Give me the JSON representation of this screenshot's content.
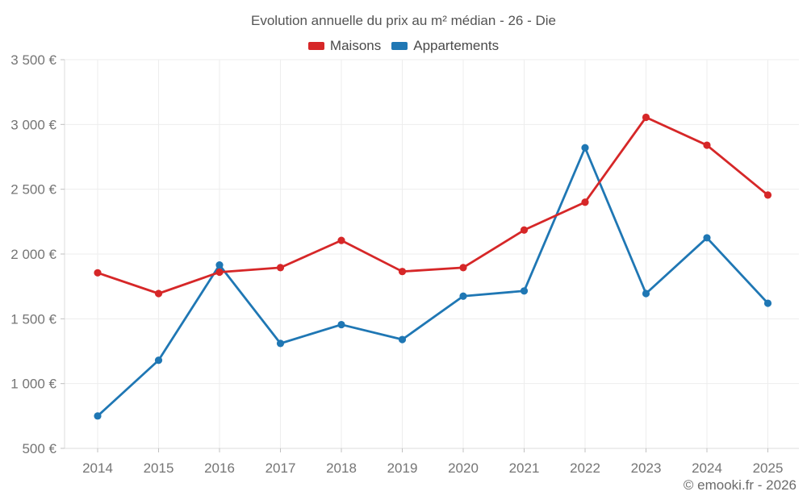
{
  "header": {
    "title": "Evolution annuelle du prix au m² médian - 26 - Die"
  },
  "legend": {
    "items": [
      {
        "label": "Maisons",
        "color": "#d62728"
      },
      {
        "label": "Appartements",
        "color": "#1f77b4"
      }
    ]
  },
  "footer": {
    "attribution": "© emooki.fr - 2026"
  },
  "chart_data": {
    "type": "line",
    "title": "Evolution annuelle du prix au m² médian - 26 - Die",
    "categories": [
      "2014",
      "2015",
      "2016",
      "2017",
      "2018",
      "2019",
      "2020",
      "2021",
      "2022",
      "2023",
      "2024",
      "2025"
    ],
    "series": [
      {
        "name": "Maisons",
        "color": "#d62728",
        "values": [
          1855,
          1695,
          1860,
          1895,
          2105,
          1865,
          1895,
          2185,
          2400,
          3055,
          2840,
          2455
        ]
      },
      {
        "name": "Appartements",
        "color": "#1f77b4",
        "values": [
          750,
          1180,
          1915,
          1310,
          1455,
          1340,
          1675,
          1715,
          2820,
          1695,
          2125,
          1620
        ]
      }
    ],
    "xlabel": "",
    "ylabel": "",
    "ylim": [
      500,
      3500
    ],
    "ytick_step": 500,
    "ytick_labels": [
      "500 €",
      "1 000 €",
      "1 500 €",
      "2 000 €",
      "2 500 €",
      "3 000 €",
      "3 500 €"
    ],
    "grid": true,
    "legend_position": "top",
    "colors": {
      "grid": "#ededed",
      "axis": "#dcdcdc",
      "tick": "#c0c0c0",
      "tick_text": "#757575"
    }
  }
}
